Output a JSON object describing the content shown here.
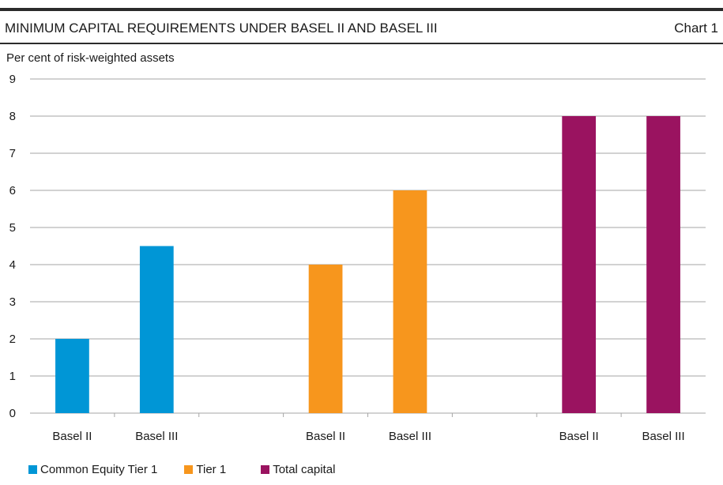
{
  "header": {
    "title": "MINIMUM CAPITAL REQUIREMENTS UNDER BASEL II AND BASEL III",
    "chart_number": "Chart 1"
  },
  "chart_data": {
    "type": "bar",
    "title": "MINIMUM CAPITAL REQUIREMENTS UNDER BASEL II AND BASEL III",
    "ylabel": "Per cent of risk-weighted assets",
    "xlabel": "",
    "ylim": [
      0,
      9
    ],
    "yticks": [
      0,
      1,
      2,
      3,
      4,
      5,
      6,
      7,
      8,
      9
    ],
    "grid": true,
    "legend_position": "bottom-left",
    "groups": [
      {
        "series": "Common Equity Tier 1",
        "color": "#0096d6",
        "bars": [
          {
            "label": "Basel II",
            "value": 2
          },
          {
            "label": "Basel III",
            "value": 4.5
          }
        ]
      },
      {
        "series": "Tier 1",
        "color": "#f7961d",
        "bars": [
          {
            "label": "Basel II",
            "value": 4
          },
          {
            "label": "Basel III",
            "value": 6
          }
        ]
      },
      {
        "series": "Total capital",
        "color": "#9a1360",
        "bars": [
          {
            "label": "Basel II",
            "value": 8
          },
          {
            "label": "Basel III",
            "value": 8
          }
        ]
      }
    ]
  }
}
